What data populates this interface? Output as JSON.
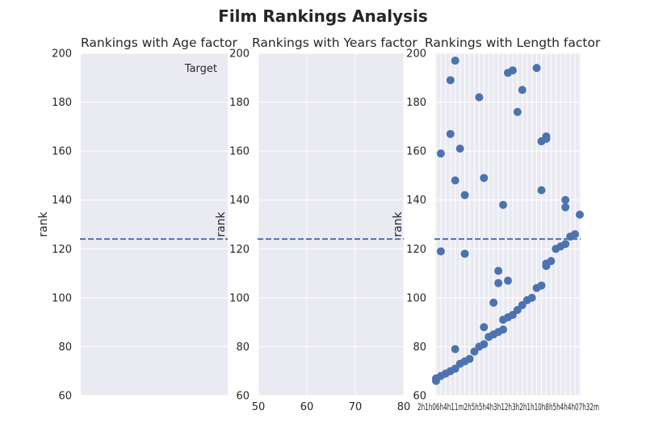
{
  "figure": {
    "title": "Film Rankings Analysis"
  },
  "chart_data": [
    {
      "type": "scatter",
      "title": "Rankings with Age factor",
      "xlabel": "",
      "ylabel": "rank",
      "ylim": [
        60,
        200
      ],
      "yticks": [
        "60",
        "80",
        "100",
        "120",
        "140",
        "160",
        "180",
        "200"
      ],
      "xticks": [],
      "xlim": [
        0,
        1
      ],
      "grid": true,
      "target_line": 124,
      "legend": {
        "label": "Target",
        "placement": "upper-right"
      },
      "points": []
    },
    {
      "type": "scatter",
      "title": "Rankings with Years factor",
      "xlabel": "",
      "ylabel": "rank",
      "ylim": [
        60,
        200
      ],
      "xlim": [
        50,
        80
      ],
      "xticks": [
        "50",
        "60",
        "70",
        "80"
      ],
      "xtick_values": [
        50,
        60,
        70,
        80
      ],
      "yticks": [
        "60",
        "80",
        "100",
        "120",
        "140",
        "160",
        "180",
        "200"
      ],
      "grid": true,
      "target_line": 124,
      "points": []
    },
    {
      "type": "scatter",
      "title": "Rankings with Length factor",
      "xlabel": "",
      "ylabel": "rank",
      "ylim": [
        60,
        200
      ],
      "yticks": [
        "60",
        "80",
        "100",
        "120",
        "140",
        "160",
        "180",
        "200"
      ],
      "xticks_visible_text": "2h1h06h4h11m2h5h5h4h3h12h3h2h1h10h8h5h4h4h07h32m",
      "x_is_categorical": true,
      "category_count": 31,
      "grid": true,
      "target_line": 124,
      "points": [
        {
          "x": 0,
          "y": 66
        },
        {
          "x": 0,
          "y": 67
        },
        {
          "x": 1,
          "y": 68
        },
        {
          "x": 1,
          "y": 159
        },
        {
          "x": 1,
          "y": 119
        },
        {
          "x": 2,
          "y": 69
        },
        {
          "x": 3,
          "y": 70
        },
        {
          "x": 3,
          "y": 189
        },
        {
          "x": 3,
          "y": 167
        },
        {
          "x": 4,
          "y": 71
        },
        {
          "x": 4,
          "y": 79
        },
        {
          "x": 4,
          "y": 148
        },
        {
          "x": 4,
          "y": 197
        },
        {
          "x": 5,
          "y": 73
        },
        {
          "x": 5,
          "y": 161
        },
        {
          "x": 6,
          "y": 74
        },
        {
          "x": 6,
          "y": 142
        },
        {
          "x": 6,
          "y": 118
        },
        {
          "x": 7,
          "y": 75
        },
        {
          "x": 8,
          "y": 78
        },
        {
          "x": 9,
          "y": 80
        },
        {
          "x": 9,
          "y": 182
        },
        {
          "x": 10,
          "y": 81
        },
        {
          "x": 10,
          "y": 149
        },
        {
          "x": 10,
          "y": 88
        },
        {
          "x": 11,
          "y": 84
        },
        {
          "x": 12,
          "y": 85
        },
        {
          "x": 12,
          "y": 98
        },
        {
          "x": 13,
          "y": 86
        },
        {
          "x": 13,
          "y": 111
        },
        {
          "x": 13,
          "y": 106
        },
        {
          "x": 14,
          "y": 87
        },
        {
          "x": 14,
          "y": 91
        },
        {
          "x": 14,
          "y": 138
        },
        {
          "x": 15,
          "y": 92
        },
        {
          "x": 15,
          "y": 107
        },
        {
          "x": 15,
          "y": 192
        },
        {
          "x": 16,
          "y": 93
        },
        {
          "x": 16,
          "y": 193
        },
        {
          "x": 17,
          "y": 95
        },
        {
          "x": 17,
          "y": 176
        },
        {
          "x": 18,
          "y": 97
        },
        {
          "x": 18,
          "y": 185
        },
        {
          "x": 19,
          "y": 99
        },
        {
          "x": 20,
          "y": 100
        },
        {
          "x": 21,
          "y": 104
        },
        {
          "x": 21,
          "y": 194
        },
        {
          "x": 22,
          "y": 105
        },
        {
          "x": 22,
          "y": 144
        },
        {
          "x": 22,
          "y": 164
        },
        {
          "x": 23,
          "y": 113
        },
        {
          "x": 23,
          "y": 114
        },
        {
          "x": 23,
          "y": 165
        },
        {
          "x": 23,
          "y": 166
        },
        {
          "x": 24,
          "y": 115
        },
        {
          "x": 25,
          "y": 120
        },
        {
          "x": 26,
          "y": 121
        },
        {
          "x": 27,
          "y": 122
        },
        {
          "x": 27,
          "y": 137
        },
        {
          "x": 27,
          "y": 140
        },
        {
          "x": 28,
          "y": 125
        },
        {
          "x": 29,
          "y": 126
        },
        {
          "x": 30,
          "y": 134
        }
      ]
    }
  ],
  "colors": {
    "axes_bg": "#eaeaf2",
    "grid": "#ffffff",
    "marker": "#4c72b0",
    "target_line": "#4c72b0"
  }
}
